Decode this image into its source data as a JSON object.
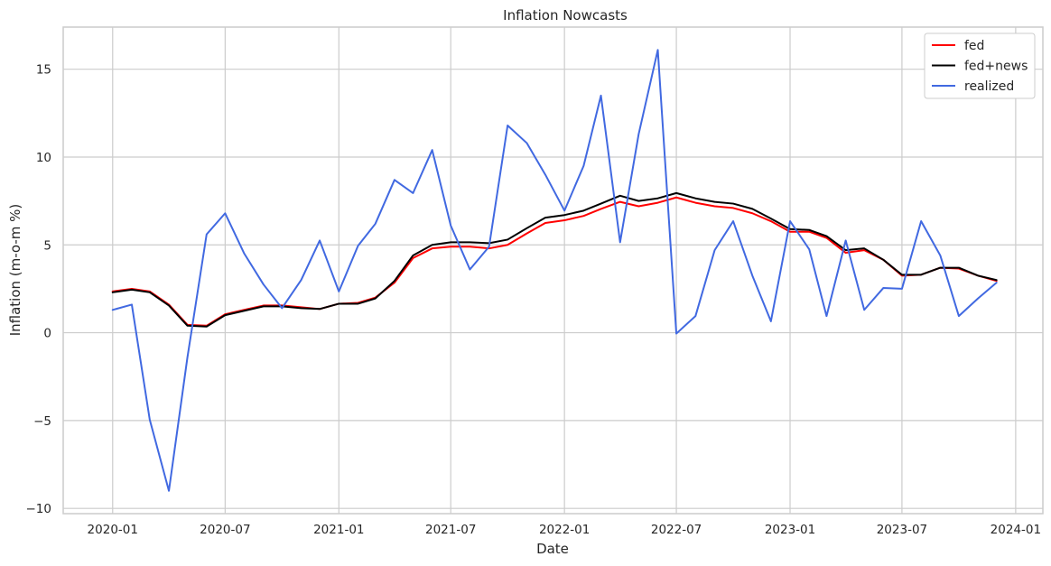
{
  "chart_data": {
    "type": "line",
    "title": "Inflation Nowcasts",
    "xlabel": "Date",
    "ylabel": "Inflation (m-o-m %)",
    "xlim": [
      "2019-10-13",
      "2024-02-14"
    ],
    "ylim": [
      -10.3,
      17.4
    ],
    "x_ticks": [
      {
        "date": "2020-01-01",
        "label": "2020-01"
      },
      {
        "date": "2020-07-01",
        "label": "2020-07"
      },
      {
        "date": "2021-01-01",
        "label": "2021-01"
      },
      {
        "date": "2021-07-01",
        "label": "2021-07"
      },
      {
        "date": "2022-01-01",
        "label": "2022-01"
      },
      {
        "date": "2022-07-01",
        "label": "2022-07"
      },
      {
        "date": "2023-01-01",
        "label": "2023-01"
      },
      {
        "date": "2023-07-01",
        "label": "2023-07"
      },
      {
        "date": "2024-01-01",
        "label": "2024-01"
      }
    ],
    "y_ticks": [
      {
        "value": -10,
        "label": "−10"
      },
      {
        "value": -5,
        "label": "−5"
      },
      {
        "value": 0,
        "label": "0"
      },
      {
        "value": 5,
        "label": "5"
      },
      {
        "value": 10,
        "label": "10"
      },
      {
        "value": 15,
        "label": "15"
      }
    ],
    "grid": true,
    "legend_position": "top-right",
    "x": [
      "2020-01-01",
      "2020-02-01",
      "2020-03-01",
      "2020-04-01",
      "2020-05-01",
      "2020-06-01",
      "2020-07-01",
      "2020-08-01",
      "2020-09-01",
      "2020-10-01",
      "2020-11-01",
      "2020-12-01",
      "2021-01-01",
      "2021-02-01",
      "2021-03-01",
      "2021-04-01",
      "2021-05-01",
      "2021-06-01",
      "2021-07-01",
      "2021-08-01",
      "2021-09-01",
      "2021-10-01",
      "2021-11-01",
      "2021-12-01",
      "2022-01-01",
      "2022-02-01",
      "2022-03-01",
      "2022-04-01",
      "2022-05-01",
      "2022-06-01",
      "2022-07-01",
      "2022-08-01",
      "2022-09-01",
      "2022-10-01",
      "2022-11-01",
      "2022-12-01",
      "2023-01-01",
      "2023-02-01",
      "2023-03-01",
      "2023-04-01",
      "2023-05-01",
      "2023-06-01",
      "2023-07-01",
      "2023-08-01",
      "2023-09-01",
      "2023-10-01",
      "2023-11-01",
      "2023-12-01"
    ],
    "series": [
      {
        "name": "fed",
        "color": "#ff0000",
        "values": [
          2.35,
          2.5,
          2.35,
          1.6,
          0.45,
          0.4,
          1.05,
          1.3,
          1.55,
          1.55,
          1.45,
          1.35,
          1.65,
          1.7,
          2.0,
          2.85,
          4.25,
          4.8,
          4.9,
          4.9,
          4.8,
          5.0,
          5.65,
          6.25,
          6.4,
          6.65,
          7.05,
          7.45,
          7.2,
          7.4,
          7.7,
          7.4,
          7.2,
          7.1,
          6.8,
          6.35,
          5.75,
          5.75,
          5.4,
          4.55,
          4.7,
          4.15,
          3.25,
          3.3,
          3.7,
          3.65,
          3.25,
          2.95
        ]
      },
      {
        "name": "fed+news",
        "color": "#000000",
        "values": [
          2.3,
          2.45,
          2.3,
          1.55,
          0.4,
          0.35,
          1.0,
          1.25,
          1.5,
          1.5,
          1.4,
          1.35,
          1.65,
          1.65,
          1.95,
          2.95,
          4.4,
          5.0,
          5.15,
          5.15,
          5.1,
          5.3,
          5.95,
          6.55,
          6.7,
          6.95,
          7.35,
          7.8,
          7.5,
          7.65,
          7.95,
          7.65,
          7.45,
          7.35,
          7.05,
          6.5,
          5.9,
          5.85,
          5.5,
          4.7,
          4.8,
          4.15,
          3.3,
          3.3,
          3.7,
          3.7,
          3.25,
          3.0
        ]
      },
      {
        "name": "realized",
        "color": "#4169e1",
        "values": [
          1.3,
          1.6,
          -4.95,
          -9.0,
          -1.4,
          5.6,
          6.8,
          4.5,
          2.75,
          1.4,
          3.0,
          5.25,
          2.35,
          4.95,
          6.2,
          8.7,
          7.95,
          10.4,
          6.1,
          3.6,
          4.9,
          11.8,
          10.8,
          9.0,
          6.95,
          9.5,
          13.5,
          5.15,
          11.3,
          16.1,
          -0.05,
          0.95,
          4.7,
          6.35,
          3.25,
          0.65,
          6.35,
          4.75,
          0.95,
          5.25,
          1.3,
          2.55,
          2.5,
          6.35,
          4.4,
          0.95,
          1.95,
          2.85
        ]
      }
    ]
  }
}
